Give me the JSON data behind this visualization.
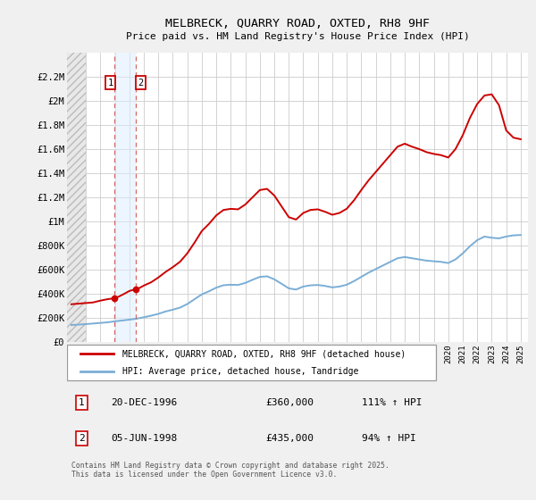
{
  "title": "MELBRECK, QUARRY ROAD, OXTED, RH8 9HF",
  "subtitle": "Price paid vs. HM Land Registry's House Price Index (HPI)",
  "ylim": [
    0,
    2400000
  ],
  "yticks": [
    0,
    200000,
    400000,
    600000,
    800000,
    1000000,
    1200000,
    1400000,
    1600000,
    1800000,
    2000000,
    2200000
  ],
  "ytick_labels": [
    "£0",
    "£200K",
    "£400K",
    "£600K",
    "£800K",
    "£1M",
    "£1.2M",
    "£1.4M",
    "£1.6M",
    "£1.8M",
    "£2M",
    "£2.2M"
  ],
  "xlim_start": 1993.7,
  "xlim_end": 2025.5,
  "background_color": "#f0f0f0",
  "plot_background_color": "#ffffff",
  "grid_color": "#cccccc",
  "hpi_line_color": "#7aaed6",
  "price_line_color": "#cc0000",
  "sale1_x": 1996.97,
  "sale1_y": 360000,
  "sale2_x": 1998.43,
  "sale2_y": 435000,
  "legend_label_red": "MELBRECK, QUARRY ROAD, OXTED, RH8 9HF (detached house)",
  "legend_label_blue": "HPI: Average price, detached house, Tandridge",
  "footer": "Contains HM Land Registry data © Crown copyright and database right 2025.\nThis data is licensed under the Open Government Licence v3.0.",
  "hpi_data_x": [
    1994.0,
    1994.5,
    1995.0,
    1995.5,
    1996.0,
    1996.5,
    1997.0,
    1997.5,
    1998.0,
    1998.5,
    1999.0,
    1999.5,
    2000.0,
    2000.5,
    2001.0,
    2001.5,
    2002.0,
    2002.5,
    2003.0,
    2003.5,
    2004.0,
    2004.5,
    2005.0,
    2005.5,
    2006.0,
    2006.5,
    2007.0,
    2007.5,
    2008.0,
    2008.5,
    2009.0,
    2009.5,
    2010.0,
    2010.5,
    2011.0,
    2011.5,
    2012.0,
    2012.5,
    2013.0,
    2013.5,
    2014.0,
    2014.5,
    2015.0,
    2015.5,
    2016.0,
    2016.5,
    2017.0,
    2017.5,
    2018.0,
    2018.5,
    2019.0,
    2019.5,
    2020.0,
    2020.5,
    2021.0,
    2021.5,
    2022.0,
    2022.5,
    2023.0,
    2023.5,
    2024.0,
    2024.5,
    2025.0
  ],
  "hpi_data_y": [
    138000,
    141000,
    145000,
    150000,
    155000,
    160000,
    168000,
    175000,
    182000,
    190000,
    202000,
    215000,
    230000,
    250000,
    265000,
    282000,
    312000,
    352000,
    392000,
    418000,
    448000,
    468000,
    472000,
    470000,
    487000,
    513000,
    537000,
    542000,
    517000,
    480000,
    442000,
    432000,
    457000,
    467000,
    470000,
    462000,
    450000,
    457000,
    472000,
    502000,
    537000,
    572000,
    602000,
    632000,
    662000,
    692000,
    702000,
    692000,
    682000,
    672000,
    667000,
    662000,
    652000,
    682000,
    732000,
    792000,
    842000,
    872000,
    862000,
    857000,
    872000,
    882000,
    885000
  ],
  "price_data_x": [
    1994.0,
    1994.5,
    1995.0,
    1995.5,
    1996.0,
    1996.5,
    1996.97,
    1997.3,
    1997.7,
    1998.0,
    1998.43,
    1998.7,
    1999.0,
    1999.5,
    2000.0,
    2000.5,
    2001.0,
    2001.5,
    2002.0,
    2002.5,
    2003.0,
    2003.5,
    2004.0,
    2004.5,
    2005.0,
    2005.5,
    2006.0,
    2006.5,
    2007.0,
    2007.5,
    2008.0,
    2008.5,
    2009.0,
    2009.5,
    2010.0,
    2010.5,
    2011.0,
    2011.5,
    2012.0,
    2012.5,
    2013.0,
    2013.5,
    2014.0,
    2014.5,
    2015.0,
    2015.5,
    2016.0,
    2016.5,
    2017.0,
    2017.5,
    2018.0,
    2018.5,
    2019.0,
    2019.5,
    2020.0,
    2020.5,
    2021.0,
    2021.5,
    2022.0,
    2022.5,
    2023.0,
    2023.5,
    2024.0,
    2024.5,
    2025.0
  ],
  "price_data_y": [
    310000,
    315000,
    320000,
    325000,
    340000,
    352000,
    360000,
    375000,
    400000,
    420000,
    435000,
    445000,
    465000,
    492000,
    532000,
    578000,
    618000,
    663000,
    733000,
    822000,
    918000,
    978000,
    1048000,
    1093000,
    1102000,
    1098000,
    1138000,
    1198000,
    1258000,
    1268000,
    1213000,
    1123000,
    1033000,
    1013000,
    1068000,
    1093000,
    1098000,
    1078000,
    1053000,
    1068000,
    1103000,
    1173000,
    1258000,
    1338000,
    1408000,
    1478000,
    1548000,
    1618000,
    1643000,
    1618000,
    1598000,
    1573000,
    1558000,
    1548000,
    1528000,
    1598000,
    1713000,
    1858000,
    1973000,
    2043000,
    2053000,
    1963000,
    1753000,
    1693000,
    1680000
  ]
}
